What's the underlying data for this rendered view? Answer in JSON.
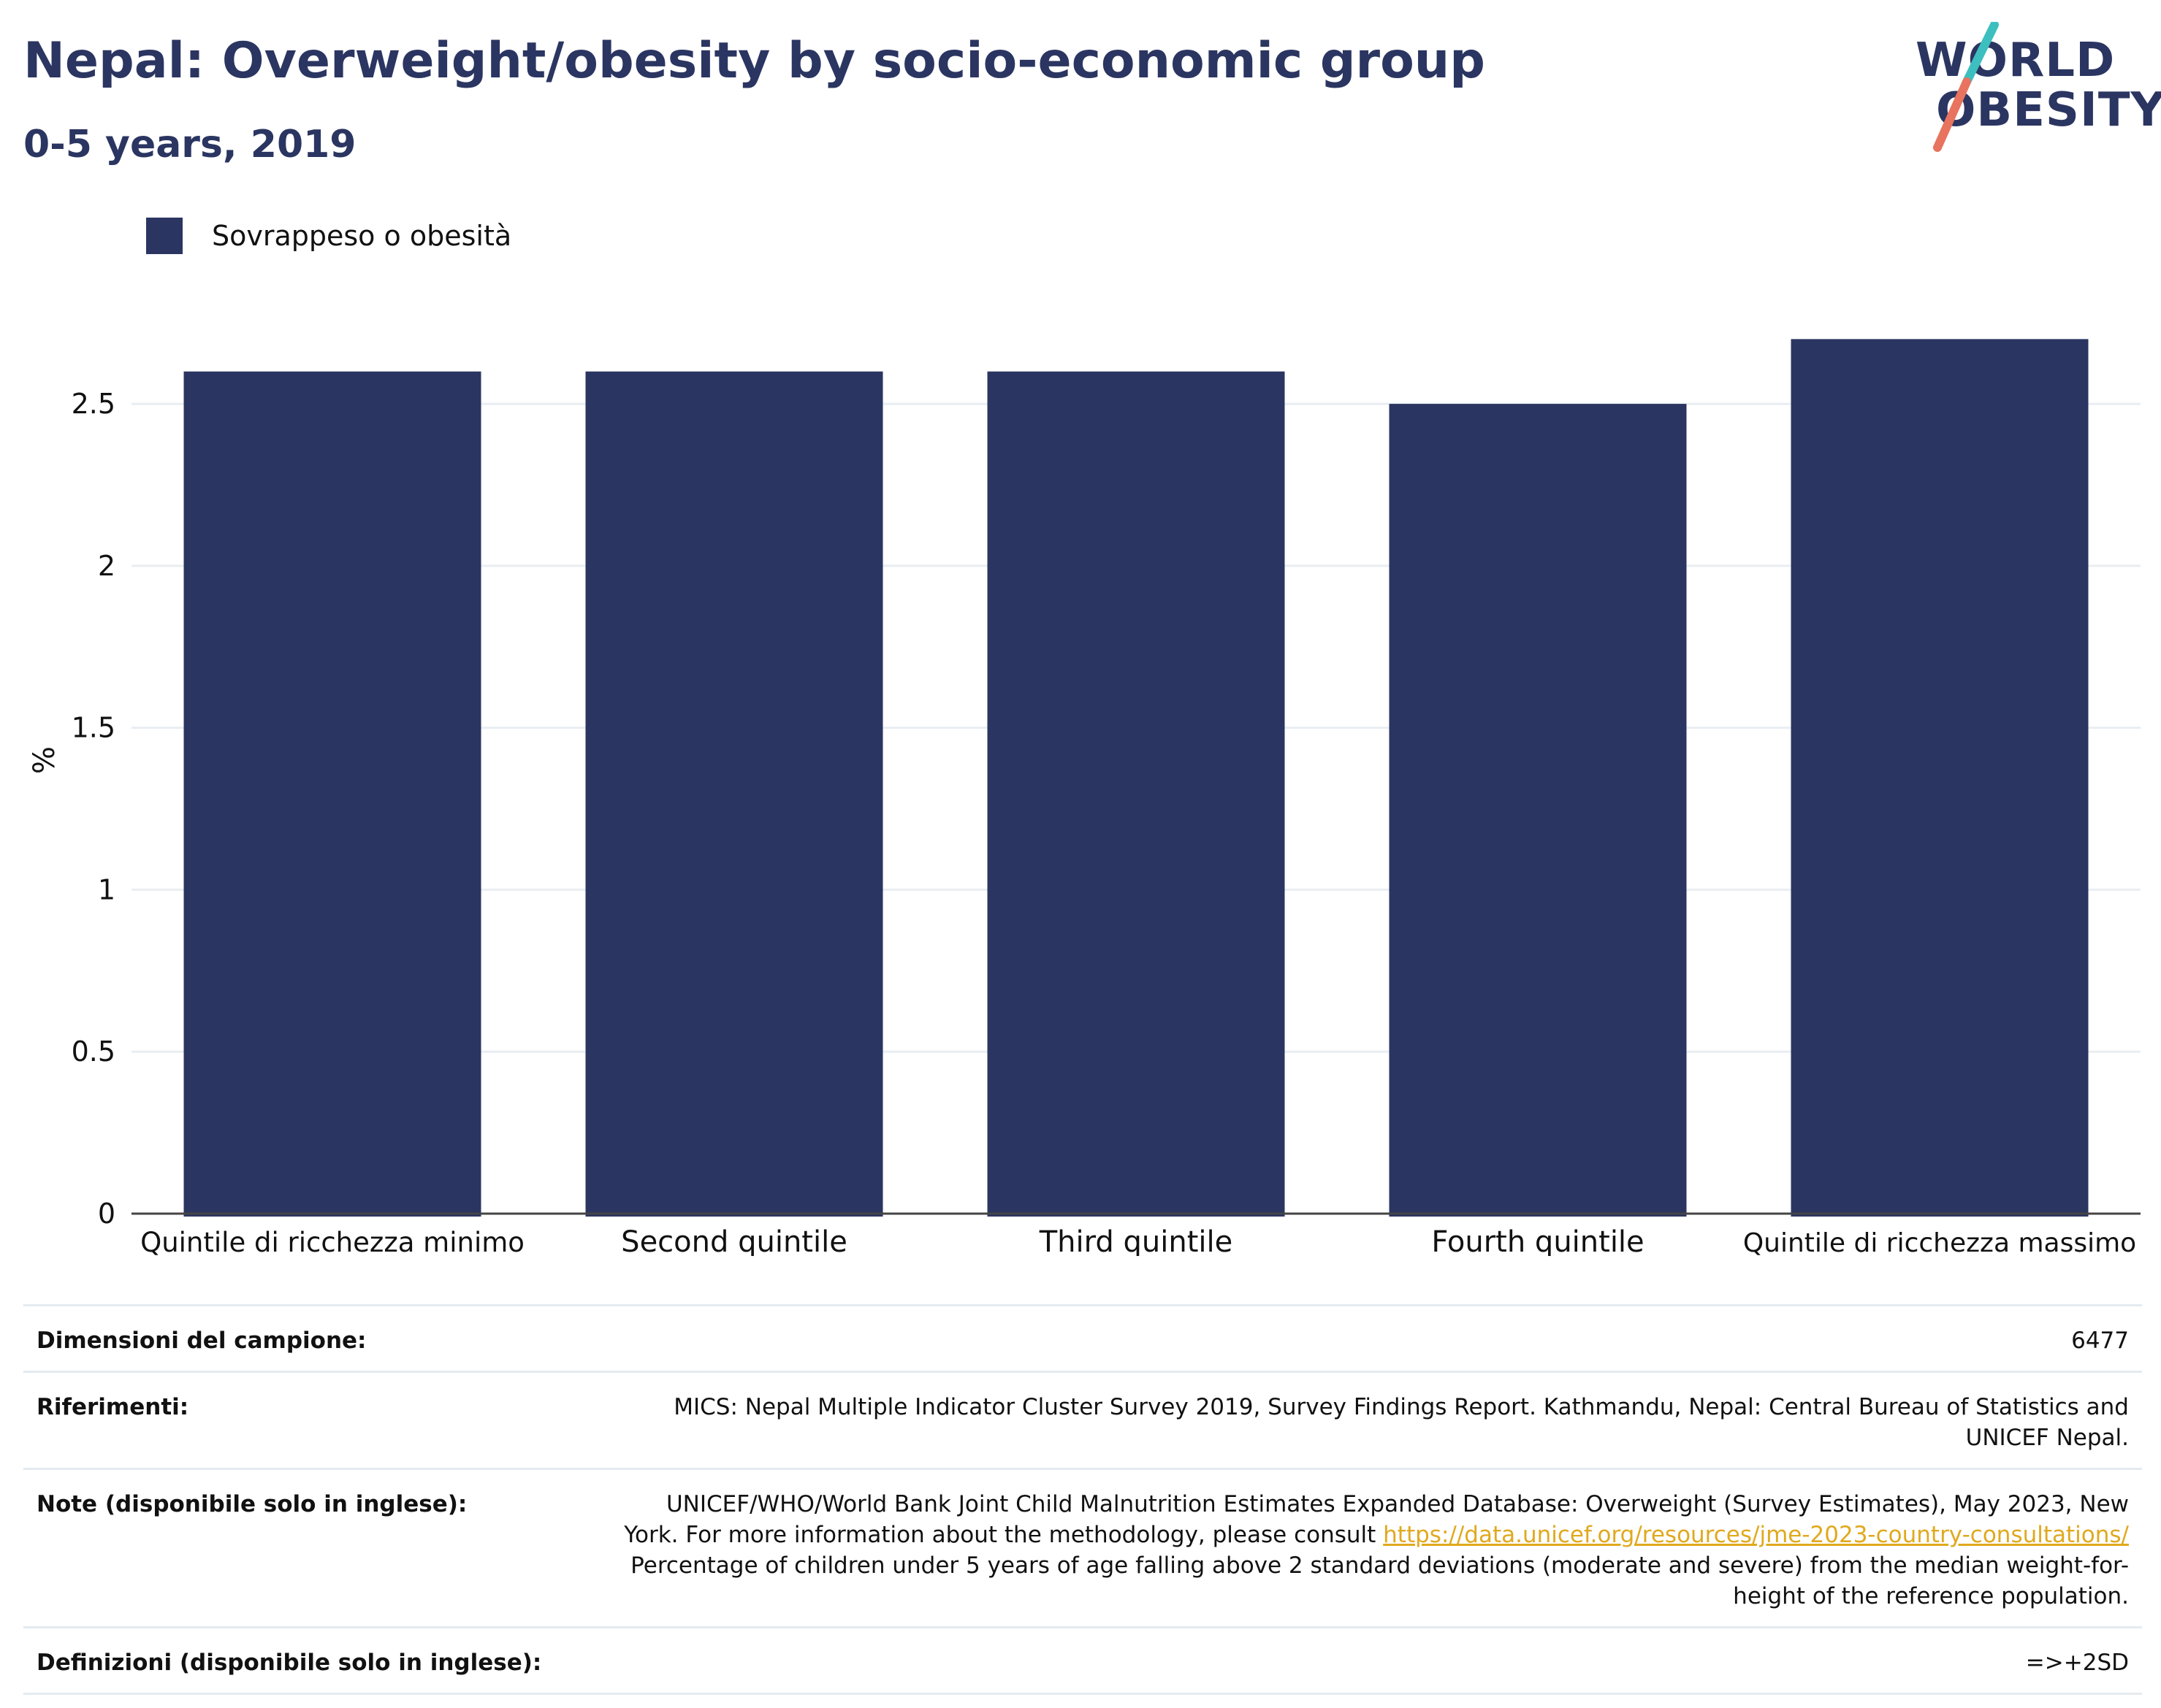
{
  "header": {
    "title": "Nepal: Overweight/obesity by socio-economic group",
    "subtitle": "0-5 years, 2019"
  },
  "logo": {
    "line1": "WORLD",
    "line2": "OBESITY",
    "colors": {
      "text": "#2b3561",
      "slash_top": "#3dbfbf",
      "slash_bottom": "#e8735f"
    }
  },
  "legend": {
    "label": "Sovrappeso o obesità",
    "color": "#2b3561"
  },
  "chart_data": {
    "type": "bar",
    "categories": [
      "Quintile di ricchezza minimo",
      "Second quintile",
      "Third quintile",
      "Fourth quintile",
      "Quintile di ricchezza massimo"
    ],
    "series": [
      {
        "name": "Sovrappeso o obesità",
        "values": [
          2.6,
          2.6,
          2.6,
          2.5,
          2.7
        ],
        "color": "#2b3561"
      }
    ],
    "ylabel": "%",
    "ylim": [
      0,
      2.8
    ],
    "yticks": [
      0,
      0.5,
      1,
      1.5,
      2,
      2.5
    ],
    "ytick_labels": [
      "0",
      "0.5",
      "1",
      "1.5",
      "2",
      "2.5"
    ],
    "grid": true,
    "legend_position": "top-left"
  },
  "info": {
    "sample_size": {
      "label": "Dimensioni del campione:",
      "value": "6477"
    },
    "references": {
      "label": "Riferimenti:",
      "value": "MICS: Nepal Multiple Indicator Cluster Survey 2019, Survey Findings Report. Kathmandu, Nepal: Central Bureau of Statistics and UNICEF Nepal."
    },
    "notes": {
      "label": "Note (disponibile solo in inglese):",
      "text_before": "UNICEF/WHO/World Bank Joint Child Malnutrition Estimates Expanded Database: Overweight (Survey Estimates), May 2023, New York. For more information about the methodology, please consult ",
      "link": "https://data.unicef.org/resources/jme-2023-country-consultations/",
      "text_after": " Percentage of children under 5 years of age falling above 2 standard deviations (moderate and severe) from the median weight-for-height of the reference population."
    },
    "definitions": {
      "label": "Definizioni (disponibile solo in inglese):",
      "value": "=>+2SD"
    }
  }
}
